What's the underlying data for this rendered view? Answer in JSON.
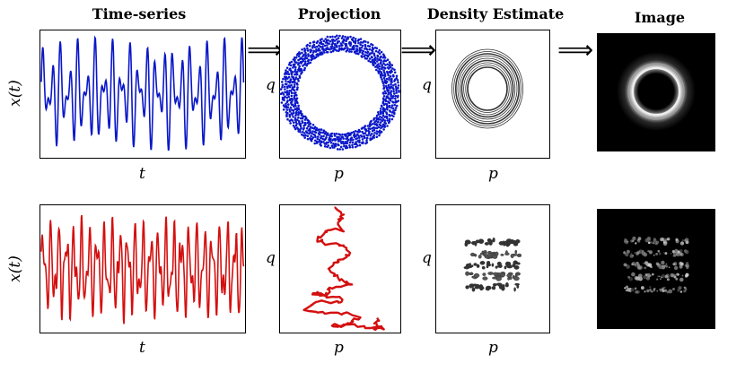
{
  "columns": {
    "time_series": "Time-series",
    "projection": "Projection",
    "density": "Density Estimate",
    "image": "Image"
  },
  "labels": {
    "x_of_t": "x(t)",
    "t": "t",
    "p": "p",
    "q": "q"
  },
  "arrow_glyph": "⟹",
  "colors": {
    "row1_series": "#0a17c8",
    "row2_series": "#d40f0f",
    "density_contour": "#333333",
    "image_background": "#000000"
  }
}
